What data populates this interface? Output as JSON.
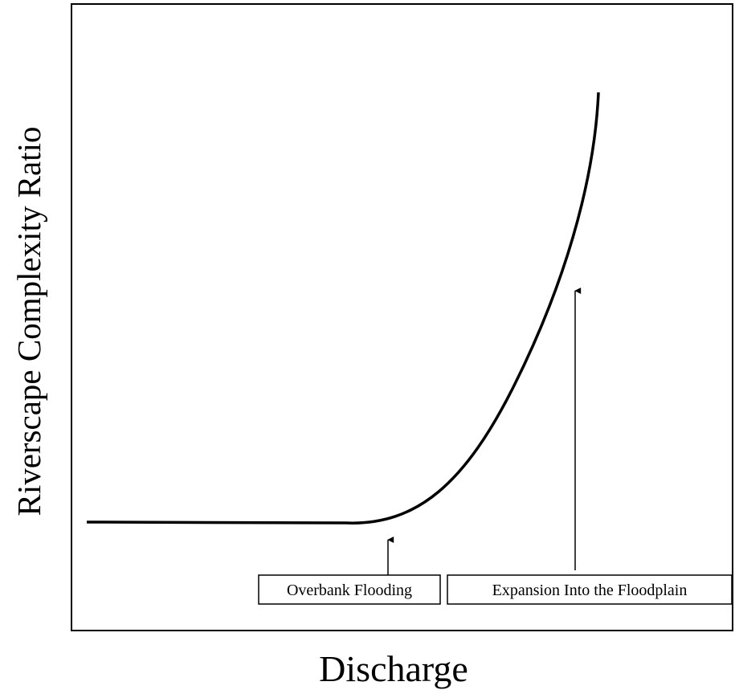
{
  "chart_data": {
    "type": "concept-curve",
    "y_label": "Riverscape Complexity Ratio",
    "x_label": "Discharge",
    "annotations": [
      "Overbank Flooding",
      "Expansion Into the Floodplain"
    ]
  }
}
